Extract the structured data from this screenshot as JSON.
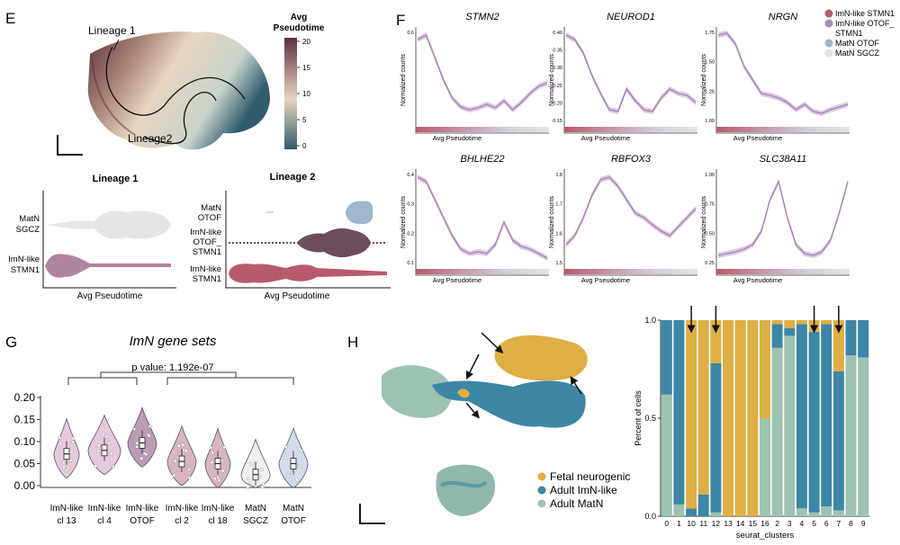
{
  "colors": {
    "imn_stmn1": "#b85a6e",
    "imn_otof_stmn1": "#a88ab5",
    "matn_otof": "#9fb6cf",
    "matn_sgcz": "#e5e5e5",
    "violet_line": "#a882b5",
    "fetal": "#dfae44",
    "adult_imn": "#3d86a6",
    "adult_matn": "#9cc2b1",
    "pt_low": "#2f5b6c",
    "pt_mid": "#e6d5c1",
    "pt_high": "#5e2f3f"
  },
  "panel_e": {
    "letter": "E",
    "lineage1_label": "Lineage 1",
    "lineage2_label": "Lineage2",
    "colorbar": {
      "title_line1": "Avg",
      "title_line2": "Pseudotime",
      "ticks": [
        "20",
        "15",
        "10",
        "5",
        "0"
      ]
    },
    "violin_l1": {
      "title": "Lineage 1",
      "xlabel": "Avg Pseudotime",
      "row1": [
        "MatN",
        "SGCZ"
      ],
      "row2": [
        "ImN-like",
        "STMN1"
      ]
    },
    "violin_l2": {
      "title": "Lineage 2",
      "xlabel": "Avg Pseudotime",
      "row1": [
        "MatN",
        "OTOF"
      ],
      "row2": [
        "ImN-like",
        "OTOF_",
        "STMN1"
      ],
      "row3": [
        "ImN-like",
        "STMN1"
      ]
    }
  },
  "panel_f": {
    "letter": "F",
    "ylabel": "Normalized counts",
    "xlabel": "Avg Pseudotime",
    "genes": [
      {
        "name": "STMN2",
        "yticks": [
          "0.6"
        ]
      },
      {
        "name": "NEUROD1",
        "yticks": [
          "0.40",
          "0.35",
          "0.30",
          "0.25",
          "0.20",
          "0.15"
        ]
      },
      {
        "name": "NRGN",
        "yticks": [
          "1.75",
          "1.50",
          "1.25",
          "1.00"
        ]
      },
      {
        "name": "BHLHE22",
        "yticks": [
          "0.4",
          "0.3",
          "0.2",
          "0.1"
        ]
      },
      {
        "name": "RBFOX3",
        "yticks": [
          "1.8",
          "1.7",
          "1.6",
          "1.5"
        ]
      },
      {
        "name": "SLC38A11",
        "yticks": [
          "1.00",
          "0.75",
          "0.50",
          "0.25"
        ]
      }
    ],
    "legend": [
      {
        "label": "ImN-like STMN1",
        "color": "#b85a6e"
      },
      {
        "label": "ImN-like OTOF_",
        "color": "#a88ab5"
      },
      {
        "label": "STMN1",
        "color": ""
      },
      {
        "label": "MatN OTOF",
        "color": "#9fb6cf"
      },
      {
        "label": "MatN SGCZ",
        "color": "#e5e5e5"
      }
    ]
  },
  "panel_g": {
    "letter": "G",
    "title": "ImN gene sets",
    "pvalue": "p value: 1.192e-07",
    "yticks": [
      "0.20",
      "0.15",
      "0.10",
      "0.05",
      "0.00"
    ],
    "groups": [
      {
        "l1": "ImN-like",
        "l2": "cl 13",
        "color": "#e5c9dc",
        "median": 0.072
      },
      {
        "l1": "ImN-like",
        "l2": "cl 4",
        "color": "#e5c9dc",
        "median": 0.08
      },
      {
        "l1": "ImN-like",
        "l2": "OTOF",
        "color": "#b99cb5",
        "median": 0.097
      },
      {
        "l1": "ImN-like",
        "l2": "cl 2",
        "color": "#d7b5c3",
        "median": 0.055
      },
      {
        "l1": "ImN-like",
        "l2": "cl 18",
        "color": "#d7b5c3",
        "median": 0.05
      },
      {
        "l1": "MatN",
        "l2": "SGCZ",
        "color": "#f0f0f0",
        "median": 0.025
      },
      {
        "l1": "MatN",
        "l2": "OTOF",
        "color": "#d2dcea",
        "median": 0.05
      }
    ]
  },
  "panel_h": {
    "letter": "H",
    "legend": [
      "Fetal neurogenic",
      "Adult ImN-like",
      "Adult MatN"
    ],
    "bar_ylabel": "Percent of cells",
    "bar_xlabel": "seurat_clusters",
    "bar_yticks": [
      "1.0",
      "0.5",
      "0.0"
    ]
  },
  "chart_data": {
    "type": "bar",
    "title": "",
    "xlabel": "seurat_clusters",
    "ylabel": "Percent of cells",
    "ylim": [
      0,
      1
    ],
    "stacked": true,
    "categories": [
      "0",
      "1",
      "10",
      "11",
      "12",
      "13",
      "14",
      "15",
      "16",
      "2",
      "3",
      "4",
      "5",
      "6",
      "7",
      "8",
      "9"
    ],
    "series": [
      {
        "name": "Adult MatN",
        "values": [
          0.62,
          0.06,
          0.0,
          0.0,
          0.02,
          0.0,
          0.0,
          0.0,
          0.5,
          0.86,
          0.92,
          0.04,
          0.02,
          0.05,
          0.03,
          0.82,
          0.81
        ]
      },
      {
        "name": "Adult ImN-like",
        "values": [
          0.38,
          0.94,
          0.04,
          0.11,
          0.76,
          0.0,
          0.0,
          0.0,
          0.0,
          0.12,
          0.04,
          0.94,
          0.92,
          0.93,
          0.71,
          0.18,
          0.19
        ]
      },
      {
        "name": "Fetal neurogenic",
        "values": [
          0.0,
          0.0,
          0.96,
          0.89,
          0.22,
          1.0,
          1.0,
          1.0,
          0.5,
          0.02,
          0.04,
          0.02,
          0.06,
          0.02,
          0.26,
          0.0,
          0.0
        ]
      }
    ],
    "arrows_on": [
      "10",
      "12",
      "5",
      "7"
    ]
  }
}
